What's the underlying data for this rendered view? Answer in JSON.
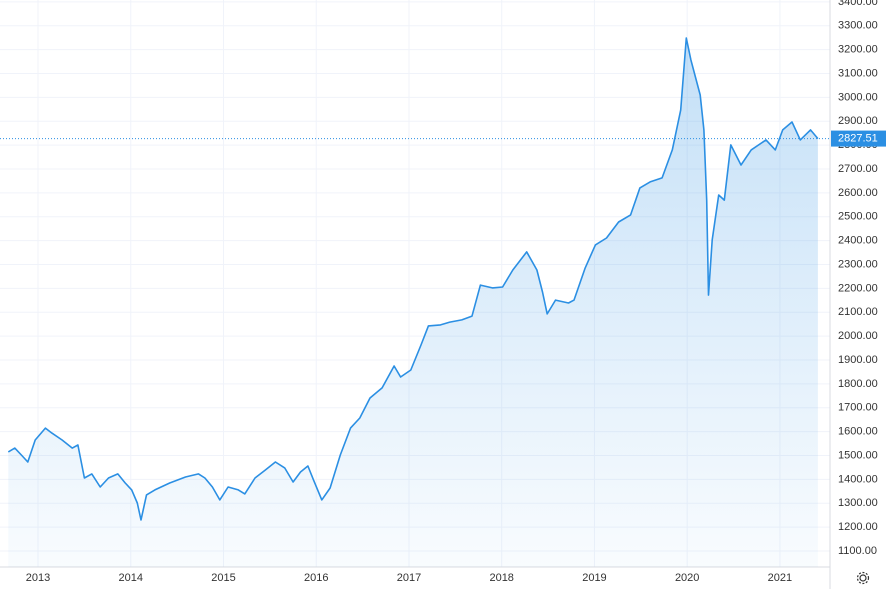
{
  "chart_data": {
    "type": "area",
    "x": [
      2012.68,
      2012.75,
      2012.83,
      2012.89,
      2012.97,
      2013.08,
      2013.15,
      2013.26,
      2013.37,
      2013.43,
      2013.5,
      2013.58,
      2013.67,
      2013.76,
      2013.86,
      2013.94,
      2014.01,
      2014.07,
      2014.11,
      2014.17,
      2014.26,
      2014.42,
      2014.59,
      2014.73,
      2014.8,
      2014.88,
      2014.96,
      2015.05,
      2015.16,
      2015.23,
      2015.34,
      2015.45,
      2015.56,
      2015.66,
      2015.75,
      2015.83,
      2015.91,
      2015.97,
      2016.06,
      2016.15,
      2016.26,
      2016.37,
      2016.47,
      2016.58,
      2016.71,
      2016.84,
      2016.91,
      2017.02,
      2017.13,
      2017.21,
      2017.34,
      2017.44,
      2017.57,
      2017.68,
      2017.77,
      2017.9,
      2018.01,
      2018.12,
      2018.27,
      2018.38,
      2018.44,
      2018.49,
      2018.58,
      2018.72,
      2018.78,
      2018.9,
      2019.01,
      2019.13,
      2019.26,
      2019.39,
      2019.49,
      2019.6,
      2019.73,
      2019.84,
      2019.93,
      2019.99,
      2020.04,
      2020.14,
      2020.18,
      2020.21,
      2020.23,
      2020.27,
      2020.34,
      2020.4,
      2020.47,
      2020.58,
      2020.69,
      2020.85,
      2020.95,
      2021.03,
      2021.13,
      2021.22,
      2021.33,
      2021.41
    ],
    "series": [
      {
        "color": "#2b8fe3",
        "values": [
          1515,
          1531,
          1498,
          1473,
          1565,
          1615,
          1594,
          1565,
          1531,
          1544,
          1406,
          1423,
          1368,
          1406,
          1423,
          1385,
          1356,
          1301,
          1230,
          1335,
          1356,
          1385,
          1410,
          1423,
          1406,
          1368,
          1314,
          1368,
          1356,
          1339,
          1406,
          1439,
          1473,
          1448,
          1389,
          1431,
          1456,
          1398,
          1314,
          1364,
          1502,
          1615,
          1657,
          1741,
          1783,
          1875,
          1829,
          1858,
          1963,
          2043,
          2047,
          2059,
          2068,
          2084,
          2214,
          2202,
          2206,
          2277,
          2353,
          2277,
          2185,
          2093,
          2151,
          2139,
          2151,
          2286,
          2382,
          2411,
          2478,
          2508,
          2621,
          2646,
          2663,
          2780,
          2947,
          3249,
          3157,
          3010,
          2864,
          2570,
          2172,
          2403,
          2591,
          2570,
          2801,
          2717,
          2780,
          2822,
          2780,
          2864,
          2897,
          2822,
          2864,
          2827.51
        ]
      }
    ],
    "last_value": 2827.51,
    "xlim": [
      2012.59,
      2021.54
    ],
    "xticks": [
      2013,
      2014,
      2015,
      2016,
      2017,
      2018,
      2019,
      2020,
      2021
    ],
    "ylim": [
      1033,
      3408
    ],
    "yticks": [
      {
        "value": 1100,
        "label": "1100.00"
      },
      {
        "value": 1200,
        "label": "1200.00"
      },
      {
        "value": 1300,
        "label": "1300.00"
      },
      {
        "value": 1400,
        "label": "1400.00"
      },
      {
        "value": 1500,
        "label": "1500.00"
      },
      {
        "value": 1600,
        "label": "1600.00"
      },
      {
        "value": 1700,
        "label": "1700.00"
      },
      {
        "value": 1800,
        "label": "1800.00"
      },
      {
        "value": 1900,
        "label": "1900.00"
      },
      {
        "value": 2000,
        "label": "2000.00"
      },
      {
        "value": 2100,
        "label": "2100.00"
      },
      {
        "value": 2200,
        "label": "2200.00"
      },
      {
        "value": 2300,
        "label": "2300.00"
      },
      {
        "value": 2400,
        "label": "2400.00"
      },
      {
        "value": 2500,
        "label": "2500.00"
      },
      {
        "value": 2600,
        "label": "2600.00"
      },
      {
        "value": 2700,
        "label": "2700.00"
      },
      {
        "value": 2800,
        "label": "2800.00"
      },
      {
        "value": 2900,
        "label": "2900.00"
      },
      {
        "value": 3000,
        "label": "3000.00"
      },
      {
        "value": 3100,
        "label": "3100.00"
      },
      {
        "value": 3200,
        "label": "3200.00"
      },
      {
        "value": 3300,
        "label": "3300.00"
      },
      {
        "value": 3400,
        "label": "3400.00"
      }
    ],
    "grid": true
  }
}
